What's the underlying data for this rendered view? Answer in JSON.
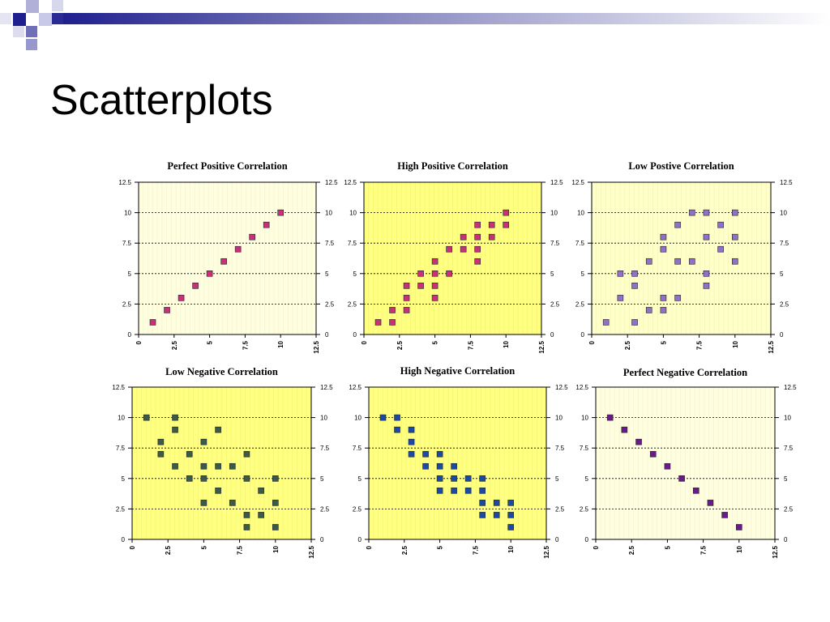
{
  "slide": {
    "title": "Scatterplots"
  },
  "chart_data": [
    {
      "type": "scatter",
      "title": "Perfect Positive Correlation",
      "background": "#ffffe0",
      "marker_color": "#c8307a",
      "x": [
        1,
        2,
        3,
        4,
        5,
        6,
        7,
        8,
        9,
        10
      ],
      "y": [
        1,
        2,
        3,
        4,
        5,
        6,
        7,
        8,
        9,
        10
      ],
      "xlim": [
        0,
        12.5
      ],
      "ylim": [
        0,
        12.5
      ],
      "xticks": [
        "0",
        "2.5",
        "5",
        "7.5",
        "10",
        "12.5"
      ],
      "yticks": [
        "0",
        "2.5",
        "5",
        "7.5",
        "10",
        "12.5"
      ],
      "grid": true
    },
    {
      "type": "scatter",
      "title": "High Positive Correlation",
      "background": "#ffff80",
      "marker_color": "#c8307a",
      "x": [
        1,
        2,
        2,
        3,
        3,
        3,
        4,
        4,
        5,
        5,
        5,
        5,
        6,
        6,
        7,
        7,
        8,
        8,
        8,
        8,
        9,
        9,
        10,
        10
      ],
      "y": [
        1,
        1,
        2,
        2,
        3,
        4,
        4,
        5,
        3,
        4,
        5,
        6,
        5,
        7,
        7,
        8,
        6,
        7,
        8,
        9,
        8,
        9,
        9,
        10
      ],
      "xlim": [
        0,
        12.5
      ],
      "ylim": [
        0,
        12.5
      ],
      "xticks": [
        "0",
        "2.5",
        "5",
        "7.5",
        "10",
        "12.5"
      ],
      "yticks": [
        "0",
        "2.5",
        "5",
        "7.5",
        "10",
        "12.5"
      ],
      "grid": true
    },
    {
      "type": "scatter",
      "title": "Low Postive Correlation",
      "background": "#ffffc8",
      "marker_color": "#9070c8",
      "x": [
        1,
        2,
        2,
        3,
        3,
        3,
        4,
        4,
        5,
        5,
        5,
        5,
        6,
        6,
        6,
        7,
        7,
        8,
        8,
        8,
        8,
        9,
        9,
        10,
        10,
        10
      ],
      "y": [
        1,
        3,
        5,
        1,
        4,
        5,
        2,
        6,
        2,
        3,
        7,
        8,
        3,
        6,
        9,
        6,
        10,
        4,
        5,
        8,
        10,
        7,
        9,
        6,
        8,
        10
      ],
      "xlim": [
        0,
        12.5
      ],
      "ylim": [
        0,
        12.5
      ],
      "xticks": [
        "0",
        "2.5",
        "5",
        "7.5",
        "10",
        "12.5"
      ],
      "yticks": [
        "0",
        "2.5",
        "5",
        "7.5",
        "10",
        "12.5"
      ],
      "grid": true
    },
    {
      "type": "scatter",
      "title": "Low Negative Correlation",
      "background": "#ffff80",
      "marker_color": "#3a5a4a",
      "x": [
        1,
        2,
        2,
        3,
        3,
        3,
        4,
        4,
        5,
        5,
        5,
        5,
        6,
        6,
        6,
        7,
        7,
        8,
        8,
        8,
        8,
        9,
        9,
        10,
        10,
        10
      ],
      "y": [
        10,
        7,
        8,
        6,
        9,
        10,
        5,
        7,
        3,
        5,
        6,
        8,
        4,
        6,
        9,
        3,
        6,
        1,
        2,
        5,
        7,
        2,
        4,
        1,
        3,
        5
      ],
      "xlim": [
        0,
        12.5
      ],
      "ylim": [
        0,
        12.5
      ],
      "xticks": [
        "0",
        "2.5",
        "5",
        "7.5",
        "10",
        "12.5"
      ],
      "yticks": [
        "0",
        "2.5",
        "5",
        "7.5",
        "10",
        "12.5"
      ],
      "grid": true
    },
    {
      "type": "scatter",
      "title": "High Negative Correlation",
      "background": "#ffff80",
      "marker_color": "#1a4aa8",
      "x": [
        1,
        2,
        2,
        3,
        3,
        3,
        4,
        4,
        5,
        5,
        5,
        5,
        6,
        6,
        6,
        7,
        7,
        8,
        8,
        8,
        8,
        9,
        9,
        10,
        10,
        10
      ],
      "y": [
        10,
        9,
        10,
        7,
        8,
        9,
        6,
        7,
        4,
        5,
        6,
        7,
        4,
        5,
        6,
        4,
        5,
        2,
        3,
        4,
        5,
        2,
        3,
        1,
        2,
        3
      ],
      "xlim": [
        0,
        12.5
      ],
      "ylim": [
        0,
        12.5
      ],
      "xticks": [
        "0",
        "2.5",
        "5",
        "7.5",
        "10",
        "12.5"
      ],
      "yticks": [
        "0",
        "2.5",
        "5",
        "7.5",
        "10",
        "12.5"
      ],
      "grid": true
    },
    {
      "type": "scatter",
      "title": "Perfect Negative Correlation",
      "background": "#ffffe0",
      "marker_color": "#6a1a8a",
      "x": [
        1,
        2,
        3,
        4,
        5,
        6,
        7,
        8,
        9,
        10
      ],
      "y": [
        10,
        9,
        8,
        7,
        6,
        5,
        4,
        3,
        2,
        1
      ],
      "xlim": [
        0,
        12.5
      ],
      "ylim": [
        0,
        12.5
      ],
      "xticks": [
        "0",
        "2.5",
        "5",
        "7.5",
        "10",
        "12.5"
      ],
      "yticks": [
        "0",
        "2.5",
        "5",
        "7.5",
        "10",
        "12.5"
      ],
      "grid": true
    }
  ]
}
